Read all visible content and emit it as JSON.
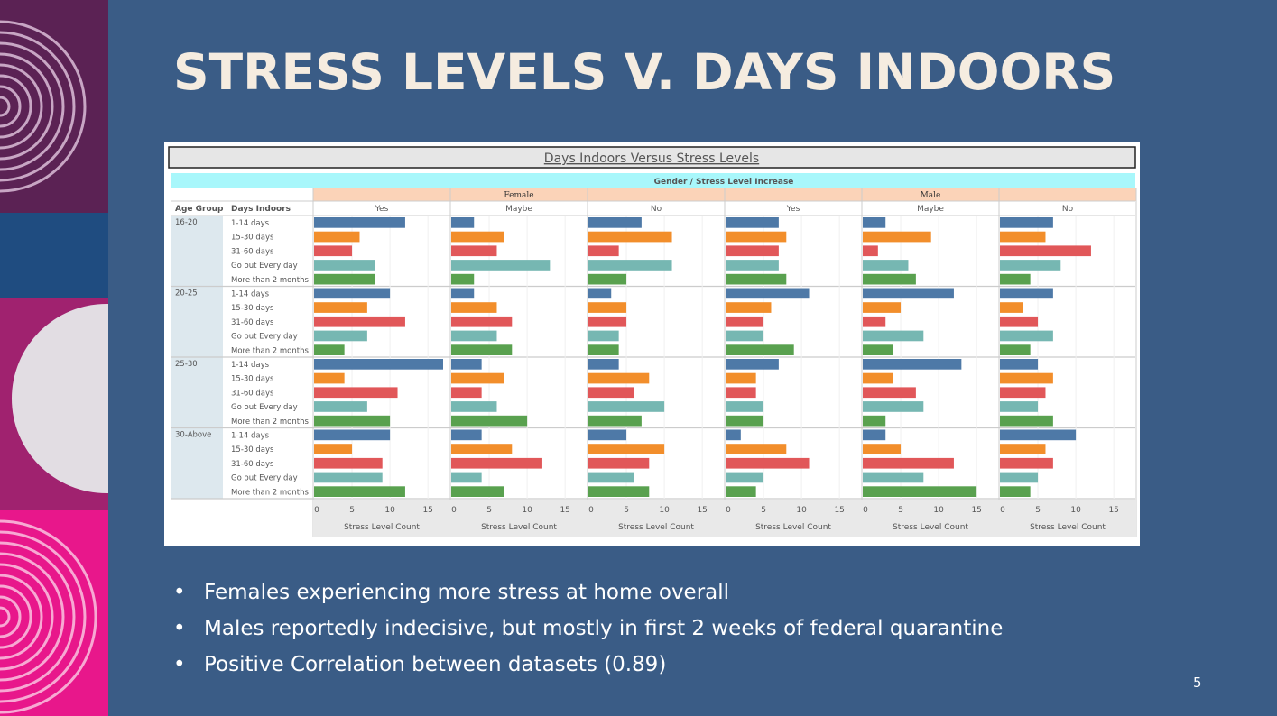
{
  "slide": {
    "title": "STRESS LEVELS V. DAYS INDOORS",
    "page_number": "5",
    "bullets": [
      "Females experiencing more stress at home overall",
      "Males reportedly indecisive, but mostly in first 2 weeks of federal quarantine",
      "Positive Correlation between datasets (0.89)"
    ],
    "bullet_glyph": "•",
    "colors": {
      "background": "#3a5c86",
      "title": "#f5ece0"
    }
  },
  "chart_data": {
    "type": "bar",
    "title": "Days Indoors Versus Stress Levels",
    "header_label": "Gender / Stress Level Increase",
    "row_headers": [
      "Age Group",
      "Days Indoors"
    ],
    "genders": [
      "Female",
      "Male"
    ],
    "stress_levels": [
      "Yes",
      "Maybe",
      "No"
    ],
    "columns": [
      {
        "gender": "Female",
        "stress": "Yes"
      },
      {
        "gender": "Female",
        "stress": "Maybe"
      },
      {
        "gender": "Female",
        "stress": "No"
      },
      {
        "gender": "Male",
        "stress": "Yes"
      },
      {
        "gender": "Male",
        "stress": "Maybe"
      },
      {
        "gender": "Male",
        "stress": "No"
      }
    ],
    "age_groups": [
      "16-20",
      "20-25",
      "25-30",
      "30-Above"
    ],
    "days_indoors": [
      "1-14 days",
      "15-30 days",
      "31-60 days",
      "Go out Every day",
      "More than 2 months"
    ],
    "colors": [
      "#4e79a7",
      "#f28e2b",
      "#e15759",
      "#76b7b2",
      "#59a14f"
    ],
    "xlabel": "Stress Level Count",
    "xticks": [
      0,
      5,
      10,
      15
    ],
    "xlim": [
      0,
      17
    ],
    "values": [
      [
        [
          12,
          6,
          5,
          8,
          8
        ],
        [
          3,
          7,
          6,
          13,
          3
        ],
        [
          7,
          11,
          4,
          11,
          5
        ],
        [
          7,
          8,
          7,
          7,
          8
        ],
        [
          3,
          9,
          2,
          6,
          7
        ],
        [
          7,
          6,
          12,
          8,
          4
        ]
      ],
      [
        [
          10,
          7,
          12,
          7,
          4
        ],
        [
          3,
          6,
          8,
          6,
          8
        ],
        [
          3,
          5,
          5,
          4,
          4
        ],
        [
          11,
          6,
          5,
          5,
          9
        ],
        [
          12,
          5,
          3,
          8,
          4
        ],
        [
          7,
          3,
          5,
          7,
          4
        ]
      ],
      [
        [
          17,
          4,
          11,
          7,
          10
        ],
        [
          4,
          7,
          4,
          6,
          10
        ],
        [
          4,
          8,
          6,
          10,
          7
        ],
        [
          7,
          4,
          4,
          5,
          5
        ],
        [
          13,
          4,
          7,
          8,
          3
        ],
        [
          5,
          7,
          6,
          5,
          7
        ]
      ],
      [
        [
          10,
          5,
          9,
          9,
          12
        ],
        [
          4,
          8,
          12,
          4,
          7
        ],
        [
          5,
          10,
          8,
          6,
          8
        ],
        [
          2,
          8,
          11,
          5,
          4
        ],
        [
          3,
          5,
          12,
          8,
          15
        ],
        [
          10,
          6,
          7,
          5,
          4
        ]
      ]
    ]
  }
}
